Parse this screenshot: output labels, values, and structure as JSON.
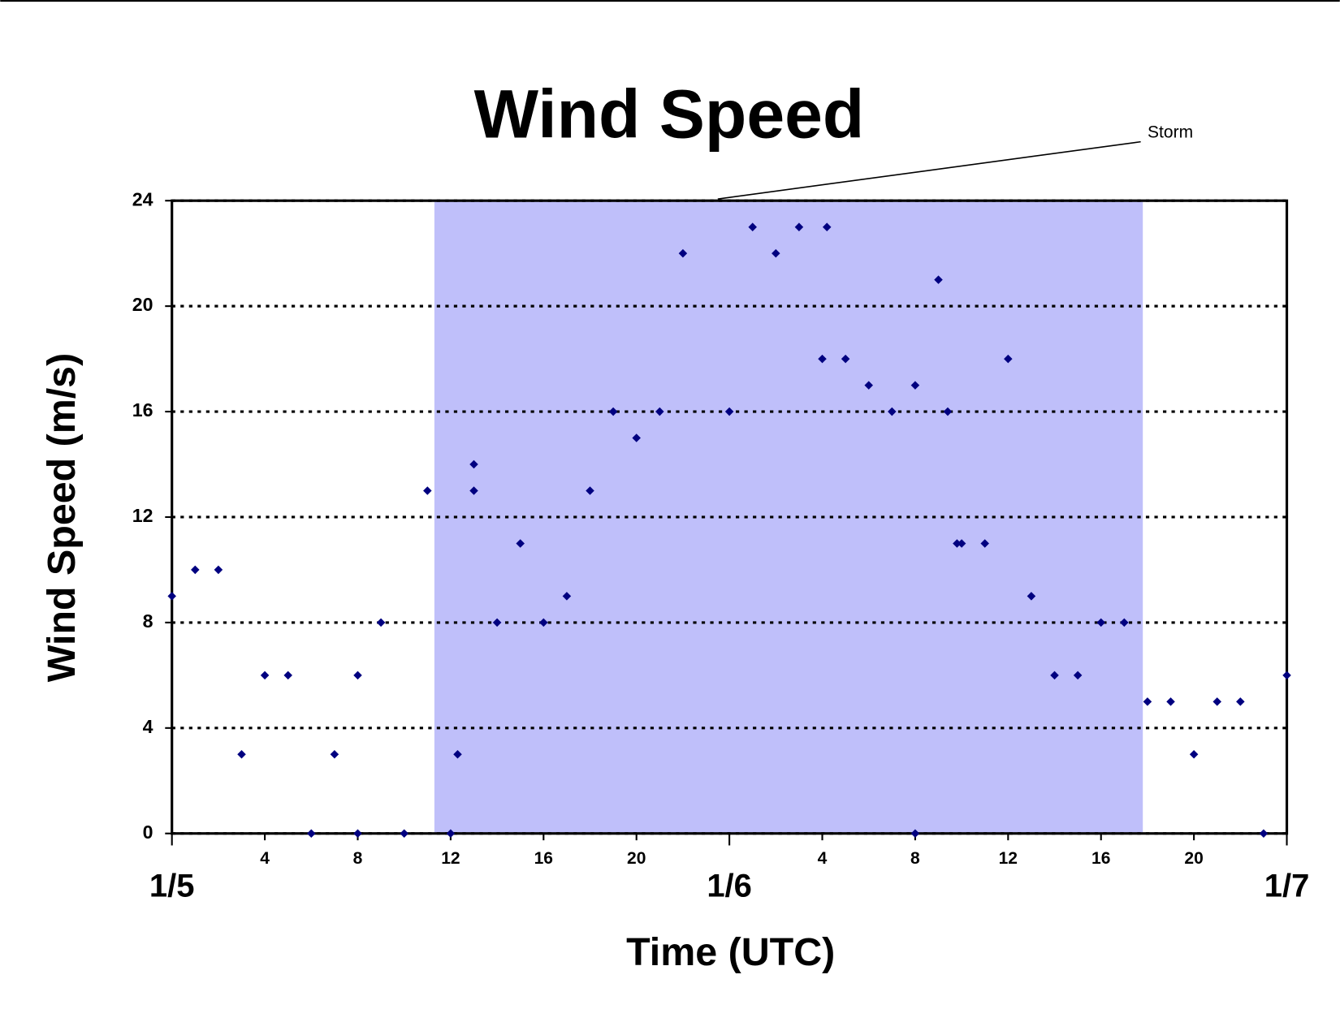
{
  "chart_data": {
    "type": "scatter",
    "title": "Wind Speed",
    "x_label": "Time (UTC)",
    "y_label": "Wind Speed (m/s)",
    "color": "#000080",
    "xlim": [
      0,
      48
    ],
    "ylim": [
      0,
      24
    ],
    "xticks": [
      {
        "value": 0,
        "label": "1/5"
      },
      4,
      8,
      {
        "value": 12,
        "label": "12"
      },
      {
        "value": 16,
        "label": "16"
      },
      {
        "value": 20,
        "label": "20"
      },
      {
        "value": 24,
        "label": "1/6"
      },
      {
        "value": 28,
        "label": "4"
      },
      {
        "value": 32,
        "label": "8"
      },
      {
        "value": 36,
        "label": "12"
      },
      {
        "value": 40,
        "label": "16"
      },
      {
        "value": 44,
        "label": "20"
      },
      {
        "value": 48,
        "label": "1/7"
      }
    ],
    "yticks": [
      0,
      4,
      8,
      12,
      16,
      20,
      24
    ],
    "grid": true,
    "shaded_region": {
      "x": [
        11.3,
        41.8
      ],
      "color": "#bfbffa"
    },
    "annotations": [
      {
        "text": "Storm",
        "x": 23.5,
        "y": 24
      }
    ],
    "x": [
      0,
      1,
      2,
      3,
      4,
      5,
      6,
      7,
      8,
      8,
      9,
      10,
      11,
      12,
      12.3,
      13,
      13,
      14,
      15,
      16,
      17,
      18,
      19,
      20,
      21,
      22,
      24,
      25,
      26,
      27,
      28,
      28.2,
      29,
      30,
      31,
      32,
      32,
      33,
      33.4,
      33.8,
      34,
      35,
      36,
      37,
      38,
      39,
      40,
      41,
      42,
      43,
      44,
      45,
      46,
      47,
      48
    ],
    "values": [
      9,
      10,
      10,
      3,
      6,
      6,
      0,
      3,
      6,
      0,
      8,
      0,
      13,
      0,
      3,
      13,
      14,
      8,
      11,
      8,
      9,
      13,
      16,
      15,
      16,
      22,
      16,
      23,
      22,
      23,
      18,
      23,
      18,
      17,
      16,
      17,
      0,
      21,
      16,
      11,
      11,
      11,
      18,
      9,
      6,
      6,
      8,
      8,
      5,
      5,
      3,
      5,
      5,
      0,
      6
    ]
  }
}
